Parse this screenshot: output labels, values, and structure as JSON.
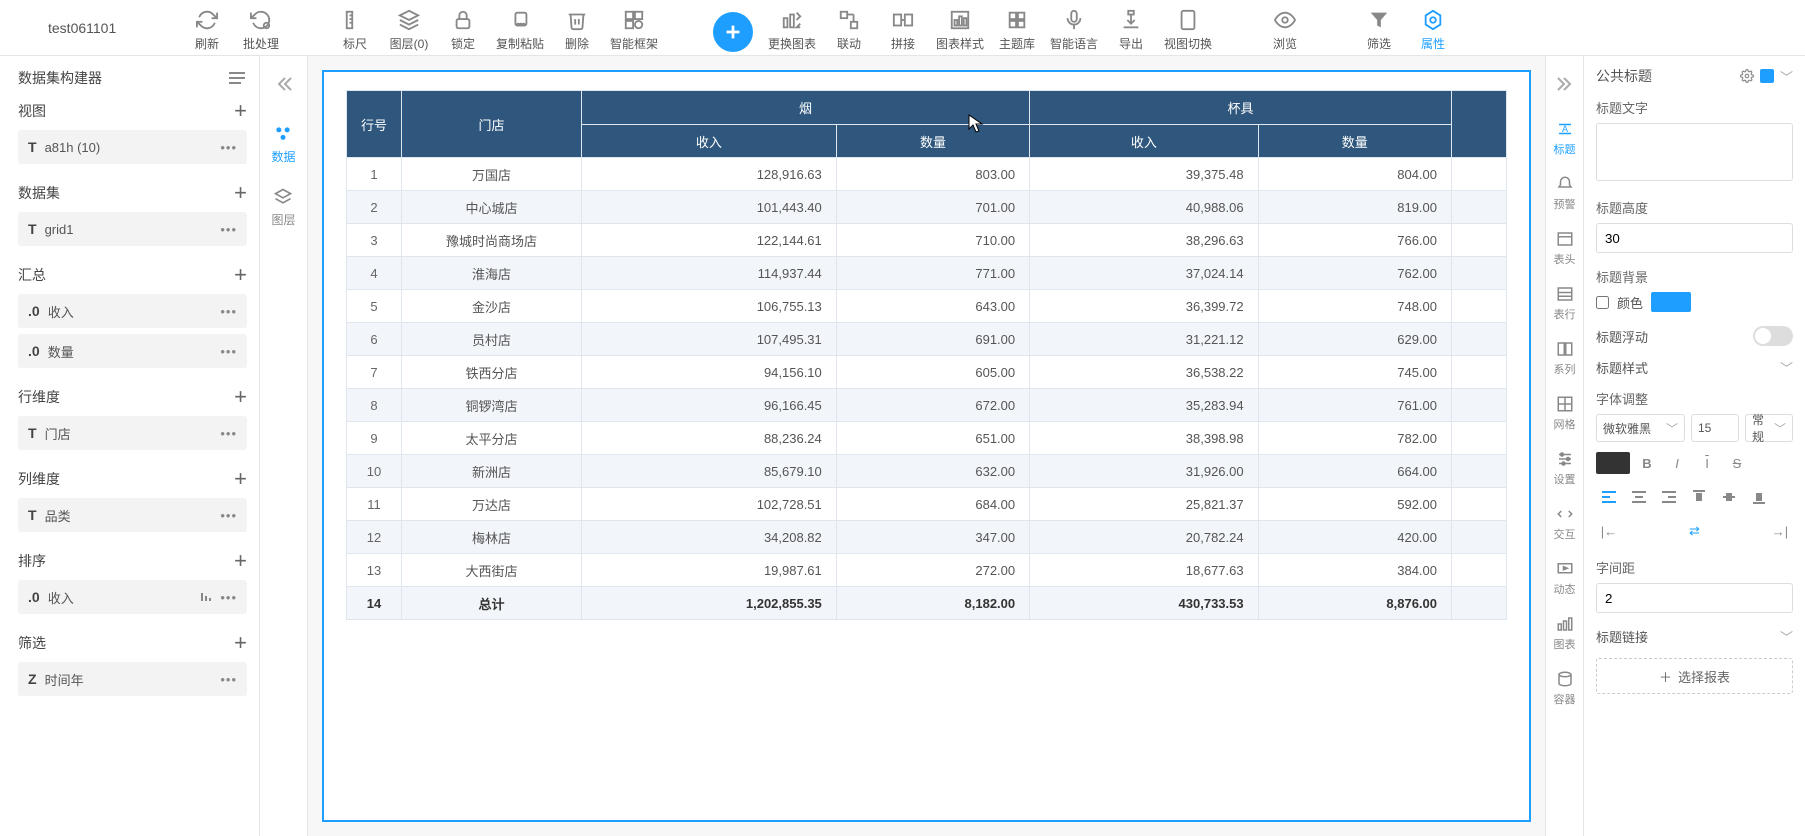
{
  "title": "test061101",
  "toolbar": [
    {
      "id": "refresh",
      "label": "刷新"
    },
    {
      "id": "batch",
      "label": "批处理"
    },
    {
      "id": "ruler",
      "label": "标尺"
    },
    {
      "id": "layer",
      "label": "图层(0)"
    },
    {
      "id": "lock",
      "label": "锁定"
    },
    {
      "id": "copypaste",
      "label": "复制粘贴"
    },
    {
      "id": "delete",
      "label": "删除"
    },
    {
      "id": "smartframe",
      "label": "智能框架"
    },
    {
      "id": "add",
      "label": ""
    },
    {
      "id": "swapchart",
      "label": "更换图表"
    },
    {
      "id": "link",
      "label": "联动"
    },
    {
      "id": "merge",
      "label": "拼接"
    },
    {
      "id": "chartstyle",
      "label": "图表样式"
    },
    {
      "id": "theme",
      "label": "主题库"
    },
    {
      "id": "smartlang",
      "label": "智能语言"
    },
    {
      "id": "export",
      "label": "导出"
    },
    {
      "id": "viewswitch",
      "label": "视图切换"
    },
    {
      "id": "preview",
      "label": "浏览"
    },
    {
      "id": "filter",
      "label": "筛选"
    },
    {
      "id": "props",
      "label": "属性"
    }
  ],
  "leftPanel": {
    "title": "数据集构建器",
    "sections": [
      {
        "title": "视图",
        "items": [
          {
            "pre": "T",
            "text": "a81h (10)"
          }
        ]
      },
      {
        "title": "数据集",
        "items": [
          {
            "pre": "T",
            "text": "grid1"
          }
        ]
      },
      {
        "title": "汇总",
        "items": [
          {
            "pre": ".0",
            "text": "收入"
          },
          {
            "pre": ".0",
            "text": "数量"
          }
        ]
      },
      {
        "title": "行维度",
        "items": [
          {
            "pre": "T",
            "text": "门店"
          }
        ]
      },
      {
        "title": "列维度",
        "items": [
          {
            "pre": "T",
            "text": "品类"
          }
        ]
      },
      {
        "title": "排序",
        "items": [
          {
            "pre": ".0",
            "text": "收入",
            "bars": true
          }
        ]
      },
      {
        "title": "筛选",
        "items": [
          {
            "pre": "Z",
            "text": "时间年"
          }
        ]
      }
    ]
  },
  "railLeft": [
    {
      "label": "数据",
      "active": true
    },
    {
      "label": "图层",
      "active": false
    }
  ],
  "table": {
    "head": {
      "rowNo": "行号",
      "store": "门店",
      "group1": "烟",
      "group2": "杯具",
      "income": "收入",
      "qty": "数量"
    },
    "rows": [
      {
        "idx": "1",
        "store": "万国店",
        "v": [
          "128,916.63",
          "803.00",
          "39,375.48",
          "804.00"
        ]
      },
      {
        "idx": "2",
        "store": "中心城店",
        "v": [
          "101,443.40",
          "701.00",
          "40,988.06",
          "819.00"
        ]
      },
      {
        "idx": "3",
        "store": "豫城时尚商场店",
        "v": [
          "122,144.61",
          "710.00",
          "38,296.63",
          "766.00"
        ]
      },
      {
        "idx": "4",
        "store": "淮海店",
        "v": [
          "114,937.44",
          "771.00",
          "37,024.14",
          "762.00"
        ]
      },
      {
        "idx": "5",
        "store": "金沙店",
        "v": [
          "106,755.13",
          "643.00",
          "36,399.72",
          "748.00"
        ]
      },
      {
        "idx": "6",
        "store": "员村店",
        "v": [
          "107,495.31",
          "691.00",
          "31,221.12",
          "629.00"
        ]
      },
      {
        "idx": "7",
        "store": "铁西分店",
        "v": [
          "94,156.10",
          "605.00",
          "36,538.22",
          "745.00"
        ]
      },
      {
        "idx": "8",
        "store": "铜锣湾店",
        "v": [
          "96,166.45",
          "672.00",
          "35,283.94",
          "761.00"
        ]
      },
      {
        "idx": "9",
        "store": "太平分店",
        "v": [
          "88,236.24",
          "651.00",
          "38,398.98",
          "782.00"
        ]
      },
      {
        "idx": "10",
        "store": "新洲店",
        "v": [
          "85,679.10",
          "632.00",
          "31,926.00",
          "664.00"
        ]
      },
      {
        "idx": "11",
        "store": "万达店",
        "v": [
          "102,728.51",
          "684.00",
          "25,821.37",
          "592.00"
        ]
      },
      {
        "idx": "12",
        "store": "梅林店",
        "v": [
          "34,208.82",
          "347.00",
          "20,782.24",
          "420.00"
        ]
      },
      {
        "idx": "13",
        "store": "大西街店",
        "v": [
          "19,987.61",
          "272.00",
          "18,677.63",
          "384.00"
        ]
      }
    ],
    "total": {
      "idx": "14",
      "store": "总计",
      "v": [
        "1,202,855.35",
        "8,182.00",
        "430,733.53",
        "8,876.00"
      ]
    }
  },
  "railRight": [
    {
      "label": "标题",
      "active": true
    },
    {
      "label": "预警"
    },
    {
      "label": "表头"
    },
    {
      "label": "表行"
    },
    {
      "label": "系列"
    },
    {
      "label": "网格"
    },
    {
      "label": "设置"
    },
    {
      "label": "交互"
    },
    {
      "label": "动态"
    },
    {
      "label": "图表"
    },
    {
      "label": "容器"
    }
  ],
  "rightPanel": {
    "header": "公共标题",
    "titleText": "标题文字",
    "titleHeight": {
      "label": "标题高度",
      "value": "30"
    },
    "titleBg": {
      "label": "标题背景",
      "colorLabel": "颜色",
      "color": "#1e9fff"
    },
    "titleFloat": "标题浮动",
    "titleStyle": "标题样式",
    "fontAdjust": "字体调整",
    "fontFamily": "微软雅黑",
    "fontSize": "15",
    "fontWeight": "常规",
    "letterSpacing": {
      "label": "字间距",
      "value": "2"
    },
    "titleLink": "标题链接",
    "selectReport": "选择报表"
  }
}
